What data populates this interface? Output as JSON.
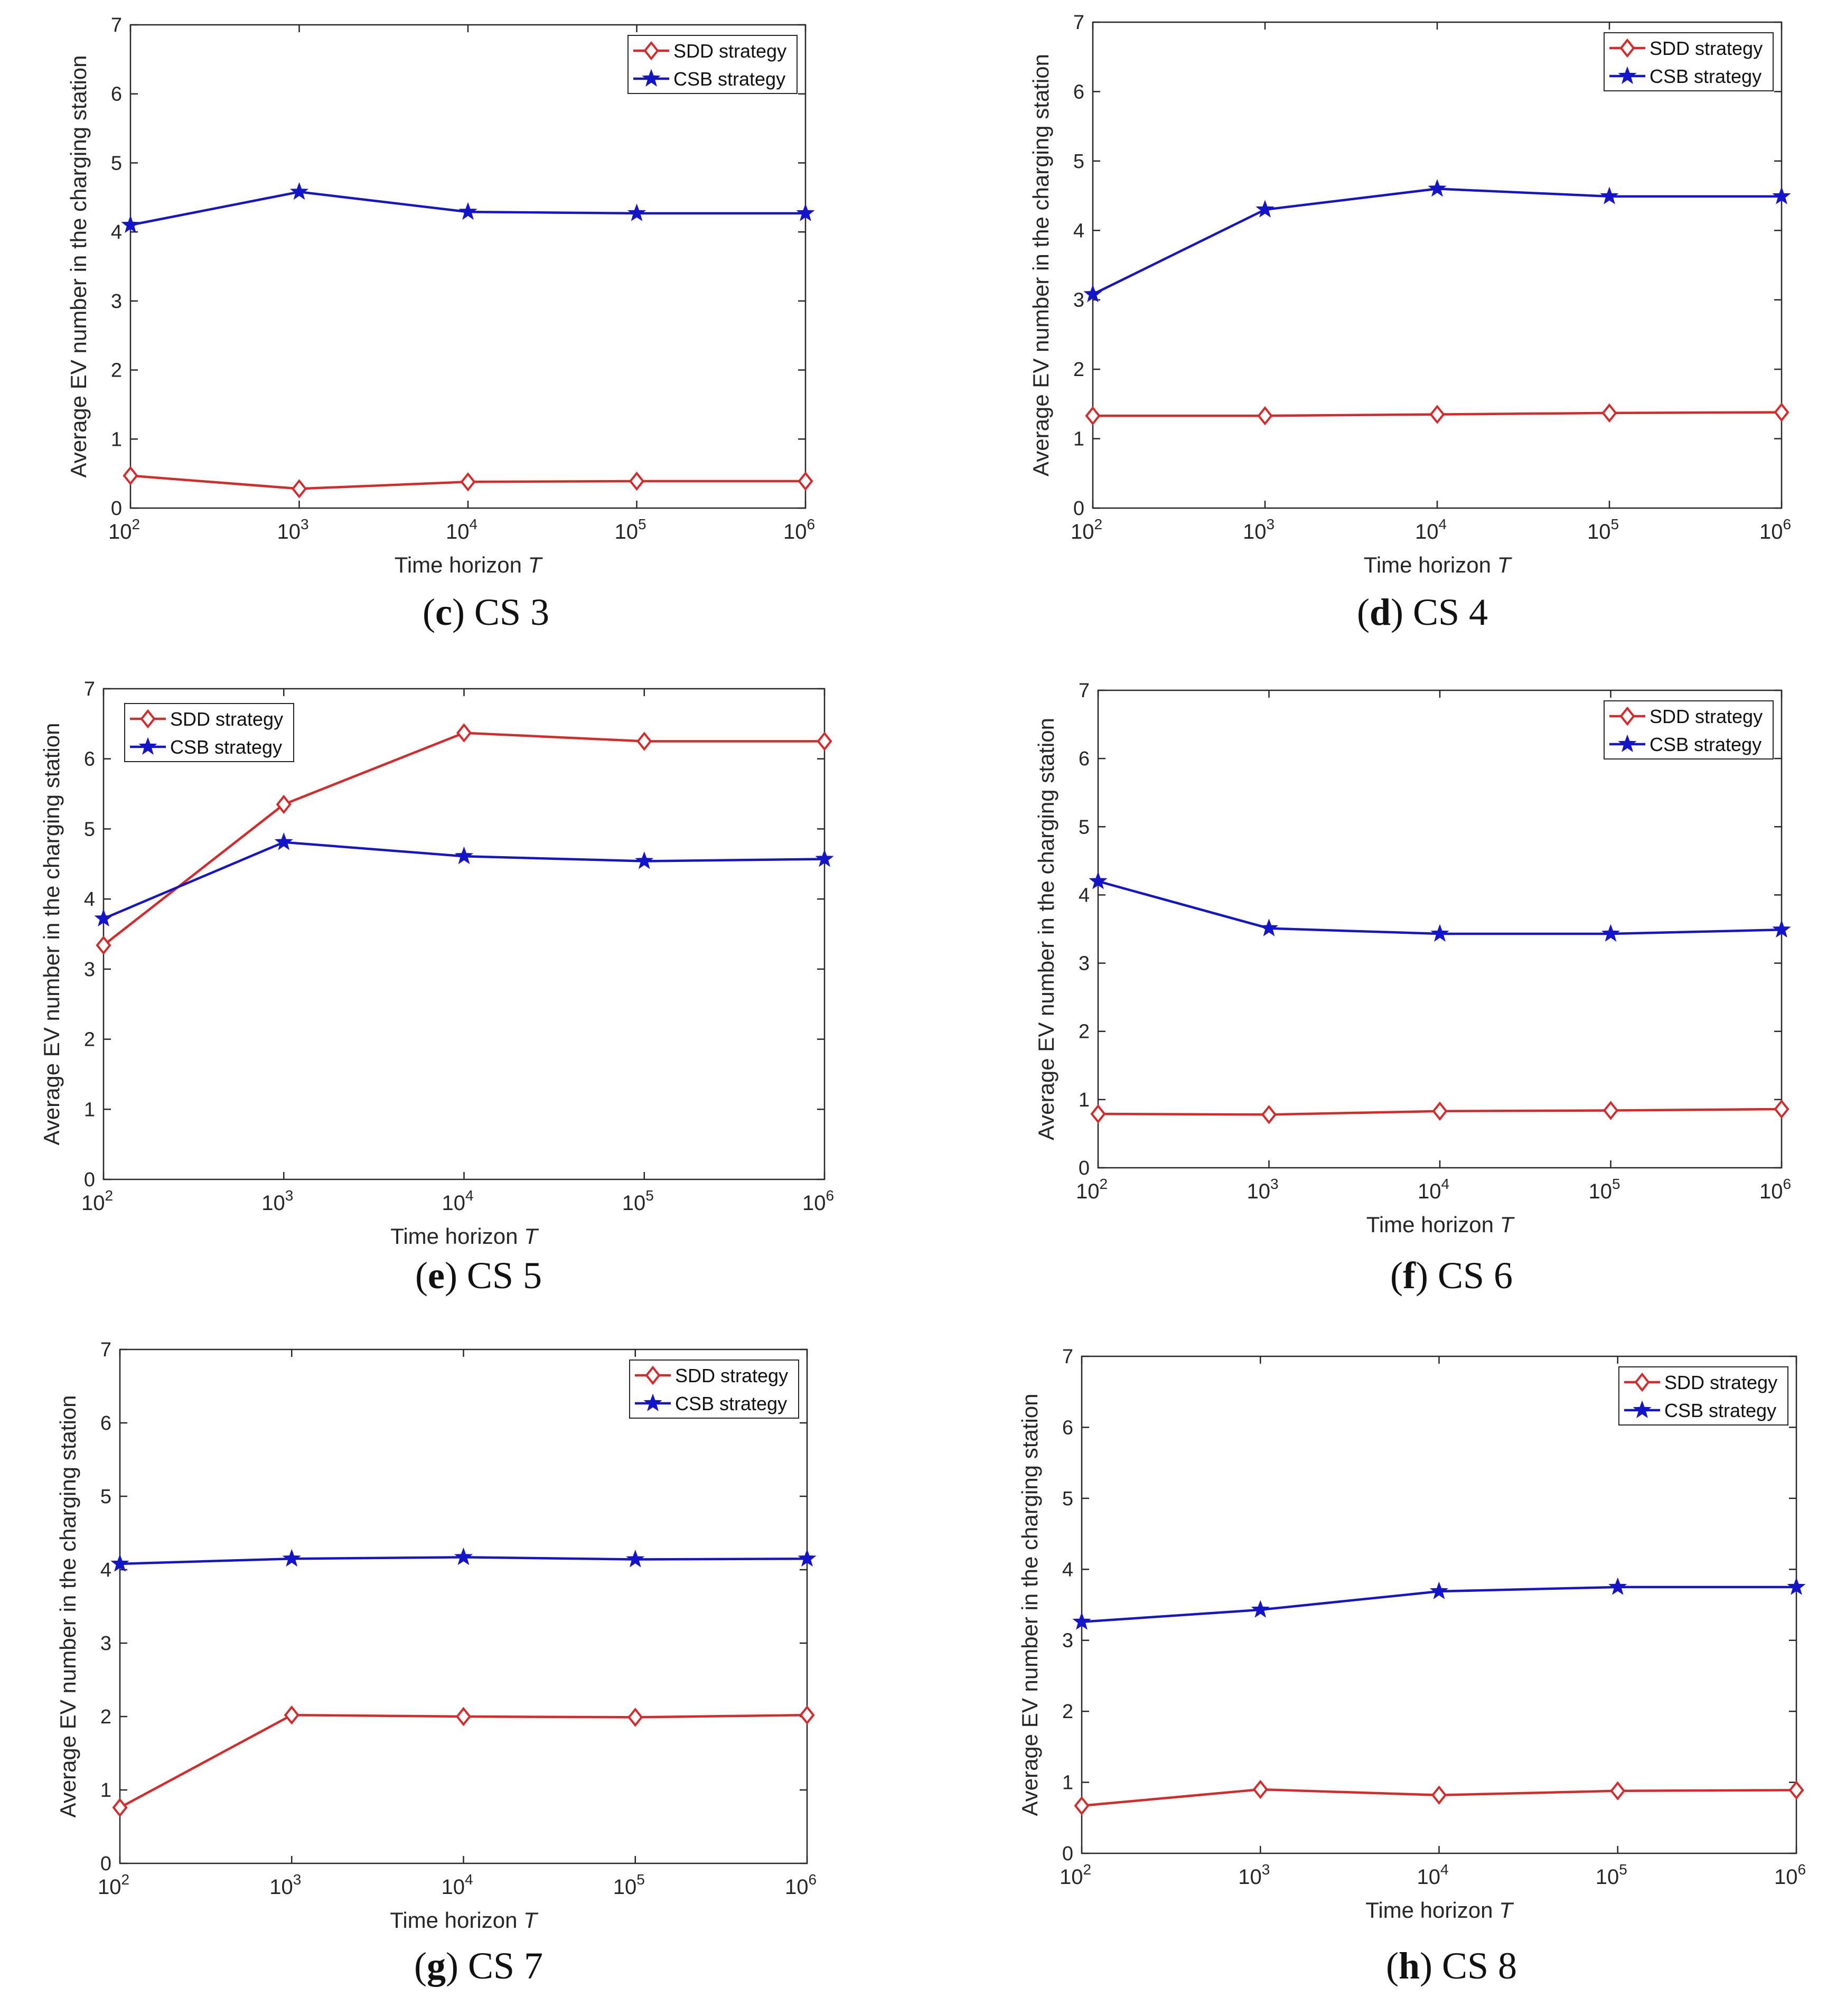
{
  "panels": [
    {
      "letter": "c",
      "caption": "CS 3"
    },
    {
      "letter": "d",
      "caption": "CS 4"
    },
    {
      "letter": "e",
      "caption": "CS 5"
    },
    {
      "letter": "f",
      "caption": "CS 6"
    },
    {
      "letter": "g",
      "caption": "CS 7"
    },
    {
      "letter": "h",
      "caption": "CS 8"
    }
  ],
  "colors": {
    "sdd": "#d42a2a",
    "csb": "#1414c8",
    "axis": "#262626",
    "grid_box": "#262626"
  },
  "chart_data": [
    {
      "type": "line",
      "xlabel": "Time horizon",
      "xlabel_var": "T",
      "ylabel": "Average EV number in the charging station",
      "x": [
        100,
        1000,
        10000,
        100000,
        1000000
      ],
      "x_tick_bases": [
        "10",
        "10",
        "10",
        "10",
        "10"
      ],
      "x_tick_exps": [
        "2",
        "3",
        "4",
        "5",
        "6"
      ],
      "xscale": "log",
      "ylim": [
        0,
        7
      ],
      "y_ticks": [
        "0",
        "1",
        "2",
        "3",
        "4",
        "5",
        "6",
        "7"
      ],
      "legend_loc": "top-right",
      "series": [
        {
          "name": "SDD strategy",
          "marker": "diamond",
          "values": [
            0.47,
            0.28,
            0.38,
            0.39,
            0.39
          ]
        },
        {
          "name": "CSB strategy",
          "marker": "star",
          "values": [
            4.1,
            4.58,
            4.29,
            4.27,
            4.27
          ]
        }
      ]
    },
    {
      "type": "line",
      "xlabel": "Time horizon",
      "xlabel_var": "T",
      "ylabel": "Average EV number in the charging station",
      "x": [
        100,
        1000,
        10000,
        100000,
        1000000
      ],
      "x_tick_bases": [
        "10",
        "10",
        "10",
        "10",
        "10"
      ],
      "x_tick_exps": [
        "2",
        "3",
        "4",
        "5",
        "6"
      ],
      "xscale": "log",
      "ylim": [
        0,
        7
      ],
      "y_ticks": [
        "0",
        "1",
        "2",
        "3",
        "4",
        "5",
        "6",
        "7"
      ],
      "legend_loc": "top-right",
      "series": [
        {
          "name": "SDD strategy",
          "marker": "diamond",
          "values": [
            1.33,
            1.33,
            1.35,
            1.37,
            1.38
          ]
        },
        {
          "name": "CSB strategy",
          "marker": "star",
          "values": [
            3.08,
            4.3,
            4.6,
            4.49,
            4.49
          ]
        }
      ]
    },
    {
      "type": "line",
      "xlabel": "Time horizon",
      "xlabel_var": "T",
      "ylabel": "Average EV number in the charging station",
      "x": [
        100,
        1000,
        10000,
        100000,
        1000000
      ],
      "x_tick_bases": [
        "10",
        "10",
        "10",
        "10",
        "10"
      ],
      "x_tick_exps": [
        "2",
        "3",
        "4",
        "5",
        "6"
      ],
      "xscale": "log",
      "ylim": [
        0,
        7
      ],
      "y_ticks": [
        "0",
        "1",
        "2",
        "3",
        "4",
        "5",
        "6",
        "7"
      ],
      "legend_loc": "top-left",
      "series": [
        {
          "name": "SDD strategy",
          "marker": "diamond",
          "values": [
            3.34,
            5.35,
            6.37,
            6.25,
            6.25
          ]
        },
        {
          "name": "CSB strategy",
          "marker": "star",
          "values": [
            3.72,
            4.81,
            4.61,
            4.54,
            4.57
          ]
        }
      ]
    },
    {
      "type": "line",
      "xlabel": "Time horizon",
      "xlabel_var": "T",
      "ylabel": "Average EV number in the charging station",
      "x": [
        100,
        1000,
        10000,
        100000,
        1000000
      ],
      "x_tick_bases": [
        "10",
        "10",
        "10",
        "10",
        "10"
      ],
      "x_tick_exps": [
        "2",
        "3",
        "4",
        "5",
        "6"
      ],
      "xscale": "log",
      "ylim": [
        0,
        7
      ],
      "y_ticks": [
        "0",
        "1",
        "2",
        "3",
        "4",
        "5",
        "6",
        "7"
      ],
      "legend_loc": "top-right",
      "series": [
        {
          "name": "SDD strategy",
          "marker": "diamond",
          "values": [
            0.79,
            0.78,
            0.83,
            0.84,
            0.86
          ]
        },
        {
          "name": "CSB strategy",
          "marker": "star",
          "values": [
            4.2,
            3.51,
            3.43,
            3.43,
            3.49
          ]
        }
      ]
    },
    {
      "type": "line",
      "xlabel": "Time horizon",
      "xlabel_var": "T",
      "ylabel": "Average EV number in the charging station",
      "x": [
        100,
        1000,
        10000,
        100000,
        1000000
      ],
      "x_tick_bases": [
        "10",
        "10",
        "10",
        "10",
        "10"
      ],
      "x_tick_exps": [
        "2",
        "3",
        "4",
        "5",
        "6"
      ],
      "xscale": "log",
      "ylim": [
        0,
        7
      ],
      "y_ticks": [
        "0",
        "1",
        "2",
        "3",
        "4",
        "5",
        "6",
        "7"
      ],
      "legend_loc": "top-right",
      "series": [
        {
          "name": "SDD strategy",
          "marker": "diamond",
          "values": [
            0.76,
            2.02,
            2.0,
            1.99,
            2.02
          ]
        },
        {
          "name": "CSB strategy",
          "marker": "star",
          "values": [
            4.08,
            4.15,
            4.17,
            4.14,
            4.15
          ]
        }
      ]
    },
    {
      "type": "line",
      "xlabel": "Time horizon",
      "xlabel_var": "T",
      "ylabel": "Average EV number in the charging station",
      "x": [
        100,
        1000,
        10000,
        100000,
        1000000
      ],
      "x_tick_bases": [
        "10",
        "10",
        "10",
        "10",
        "10"
      ],
      "x_tick_exps": [
        "2",
        "3",
        "4",
        "5",
        "6"
      ],
      "xscale": "log",
      "ylim": [
        0,
        7
      ],
      "y_ticks": [
        "0",
        "1",
        "2",
        "3",
        "4",
        "5",
        "6",
        "7"
      ],
      "legend_loc": "top-right",
      "series": [
        {
          "name": "SDD strategy",
          "marker": "diamond",
          "values": [
            0.67,
            0.9,
            0.82,
            0.88,
            0.89
          ]
        },
        {
          "name": "CSB strategy",
          "marker": "star",
          "values": [
            3.26,
            3.43,
            3.69,
            3.75,
            3.75
          ]
        }
      ]
    }
  ]
}
